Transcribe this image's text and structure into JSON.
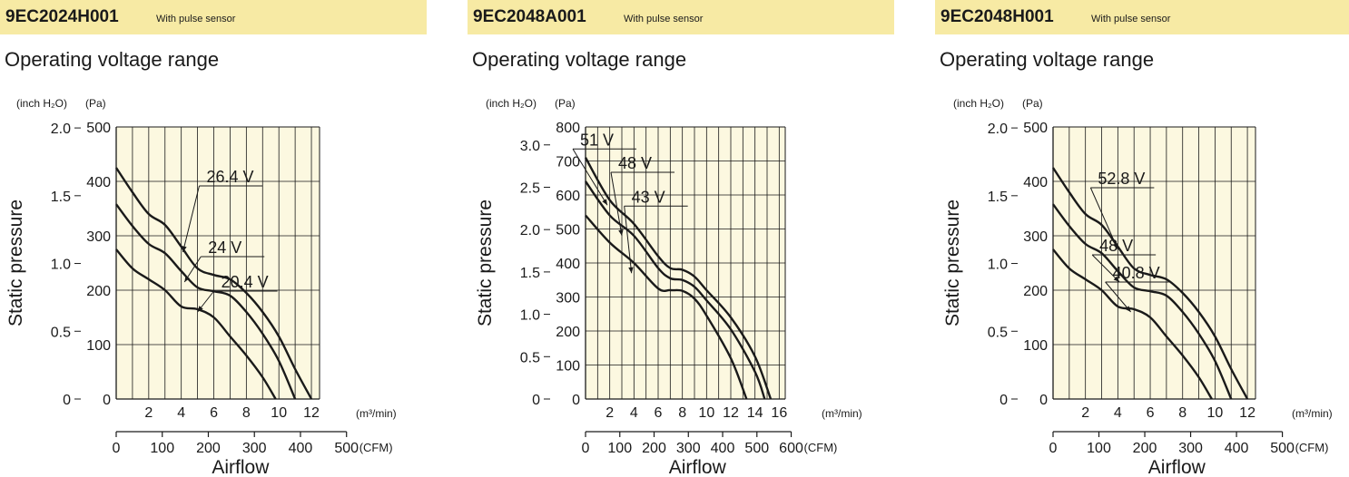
{
  "section_title": "Operating voltage range",
  "chart_data": [
    {
      "type": "line",
      "model": "9EC2024H001",
      "note": "With pulse sensor",
      "ylabel": "Static pressure",
      "xlabel": "Airflow",
      "y_unit_left": "(inch H₂O)",
      "y_unit_right": "(Pa)",
      "x_unit_top": "(m³/min)",
      "x_unit_bottom": "(CFM)",
      "xlim": [
        0,
        12.5
      ],
      "ylim": [
        0,
        500
      ],
      "x_ticks_top": [
        2,
        4,
        6,
        8,
        10,
        12
      ],
      "x_ticks_cfm": [
        0,
        100,
        200,
        300,
        400,
        500
      ],
      "y_ticks_pa": [
        0,
        100,
        200,
        300,
        400,
        500
      ],
      "y_ticks_inh2o": [
        "0",
        "0.5",
        "1.0",
        "1.5",
        "2.0"
      ],
      "series": [
        {
          "name": "26.4 V",
          "points": [
            [
              0,
              425
            ],
            [
              1,
              380
            ],
            [
              2,
              340
            ],
            [
              3,
              320
            ],
            [
              4,
              280
            ],
            [
              5,
              240
            ],
            [
              6,
              228
            ],
            [
              7,
              220
            ],
            [
              8,
              195
            ],
            [
              9,
              160
            ],
            [
              10,
              115
            ],
            [
              11,
              55
            ],
            [
              12,
              0
            ]
          ]
        },
        {
          "name": "24 V",
          "points": [
            [
              0,
              358
            ],
            [
              1,
              318
            ],
            [
              2,
              285
            ],
            [
              3,
              268
            ],
            [
              4,
              235
            ],
            [
              5,
              205
            ],
            [
              6,
              198
            ],
            [
              7,
              190
            ],
            [
              8,
              160
            ],
            [
              9,
              120
            ],
            [
              10,
              70
            ],
            [
              11,
              0
            ]
          ]
        },
        {
          "name": "20.4 V",
          "points": [
            [
              0,
              275
            ],
            [
              1,
              240
            ],
            [
              2,
              220
            ],
            [
              3,
              200
            ],
            [
              4,
              170
            ],
            [
              5,
              165
            ],
            [
              6,
              150
            ],
            [
              7,
              115
            ],
            [
              8,
              80
            ],
            [
              9,
              40
            ],
            [
              9.8,
              0
            ]
          ]
        }
      ],
      "annotations": [
        {
          "label": "26.4 V",
          "anchor": [
            4.1,
            270
          ]
        },
        {
          "label": "24 V",
          "anchor": [
            4.2,
            215
          ]
        },
        {
          "label": "20.4 V",
          "anchor": [
            5,
            160
          ]
        }
      ]
    },
    {
      "type": "line",
      "model": "9EC2048A001",
      "note": "With pulse sensor",
      "ylabel": "Static pressure",
      "xlabel": "Airflow",
      "y_unit_left": "(inch H₂O)",
      "y_unit_right": "(Pa)",
      "x_unit_top": "(m³/min)",
      "x_unit_bottom": "(CFM)",
      "xlim": [
        0,
        16.5
      ],
      "ylim": [
        0,
        800
      ],
      "x_ticks_top": [
        2,
        4,
        6,
        8,
        10,
        12,
        14,
        16
      ],
      "x_ticks_cfm": [
        0,
        100,
        200,
        300,
        400,
        500,
        600
      ],
      "y_ticks_pa": [
        0,
        100,
        200,
        300,
        400,
        500,
        600,
        700,
        800
      ],
      "y_ticks_inh2o": [
        "0",
        "0.5",
        "1.0",
        "1.5",
        "2.0",
        "2.5",
        "3.0"
      ],
      "series": [
        {
          "name": "51 V",
          "points": [
            [
              0,
              710
            ],
            [
              2,
              585
            ],
            [
              4,
              515
            ],
            [
              6,
              420
            ],
            [
              7,
              385
            ],
            [
              8,
              380
            ],
            [
              9,
              360
            ],
            [
              10,
              320
            ],
            [
              12,
              240
            ],
            [
              14,
              125
            ],
            [
              15.3,
              0
            ]
          ]
        },
        {
          "name": "48 V",
          "points": [
            [
              0,
              640
            ],
            [
              2,
              540
            ],
            [
              4,
              480
            ],
            [
              6,
              385
            ],
            [
              7,
              355
            ],
            [
              8,
              350
            ],
            [
              9,
              330
            ],
            [
              10,
              290
            ],
            [
              12,
              205
            ],
            [
              14,
              80
            ],
            [
              14.8,
              0
            ]
          ]
        },
        {
          "name": "43 V",
          "points": [
            [
              0,
              540
            ],
            [
              2,
              460
            ],
            [
              4,
              400
            ],
            [
              6,
              325
            ],
            [
              7,
              320
            ],
            [
              8,
              318
            ],
            [
              9,
              295
            ],
            [
              10,
              245
            ],
            [
              12,
              120
            ],
            [
              13.3,
              0
            ]
          ]
        }
      ],
      "annotations": [
        {
          "label": "51 V",
          "anchor": [
            1.8,
            570
          ]
        },
        {
          "label": "48 V",
          "anchor": [
            3,
            480
          ]
        },
        {
          "label": "43 V",
          "anchor": [
            3.8,
            370
          ]
        }
      ]
    },
    {
      "type": "line",
      "model": "9EC2048H001",
      "note": "With pulse sensor",
      "ylabel": "Static pressure",
      "xlabel": "Airflow",
      "y_unit_left": "(inch H₂O)",
      "y_unit_right": "(Pa)",
      "x_unit_top": "(m³/min)",
      "x_unit_bottom": "(CFM)",
      "xlim": [
        0,
        12.5
      ],
      "ylim": [
        0,
        500
      ],
      "x_ticks_top": [
        2,
        4,
        6,
        8,
        10,
        12
      ],
      "x_ticks_cfm": [
        0,
        100,
        200,
        300,
        400,
        500
      ],
      "y_ticks_pa": [
        0,
        100,
        200,
        300,
        400,
        500
      ],
      "y_ticks_inh2o": [
        "0",
        "0.5",
        "1.0",
        "1.5",
        "2.0"
      ],
      "series": [
        {
          "name": "52.8 V",
          "points": [
            [
              0,
              425
            ],
            [
              1,
              380
            ],
            [
              2,
              340
            ],
            [
              3,
              320
            ],
            [
              4,
              280
            ],
            [
              5,
              240
            ],
            [
              6,
              228
            ],
            [
              7,
              220
            ],
            [
              8,
              195
            ],
            [
              9,
              160
            ],
            [
              10,
              115
            ],
            [
              11,
              55
            ],
            [
              12,
              0
            ]
          ]
        },
        {
          "name": "48 V",
          "points": [
            [
              0,
              358
            ],
            [
              1,
              318
            ],
            [
              2,
              285
            ],
            [
              3,
              268
            ],
            [
              4,
              235
            ],
            [
              5,
              205
            ],
            [
              6,
              198
            ],
            [
              7,
              190
            ],
            [
              8,
              160
            ],
            [
              9,
              120
            ],
            [
              10,
              70
            ],
            [
              11,
              0
            ]
          ]
        },
        {
          "name": "40.8 V",
          "points": [
            [
              0,
              275
            ],
            [
              1,
              240
            ],
            [
              2,
              220
            ],
            [
              3,
              200
            ],
            [
              4,
              170
            ],
            [
              5,
              165
            ],
            [
              6,
              150
            ],
            [
              7,
              115
            ],
            [
              8,
              80
            ],
            [
              9,
              40
            ],
            [
              9.8,
              0
            ]
          ]
        }
      ],
      "annotations": [
        {
          "label": "52.8 V",
          "anchor": [
            4,
            275
          ]
        },
        {
          "label": "48 V",
          "anchor": [
            4.1,
            215
          ]
        },
        {
          "label": "40.8 V",
          "anchor": [
            4.8,
            160
          ]
        }
      ]
    }
  ],
  "colors": {
    "plot_bg": "#fcf8e0",
    "band": "#f7eaa4",
    "line": "#1a1a1a",
    "grid": "#1a1a1a"
  }
}
